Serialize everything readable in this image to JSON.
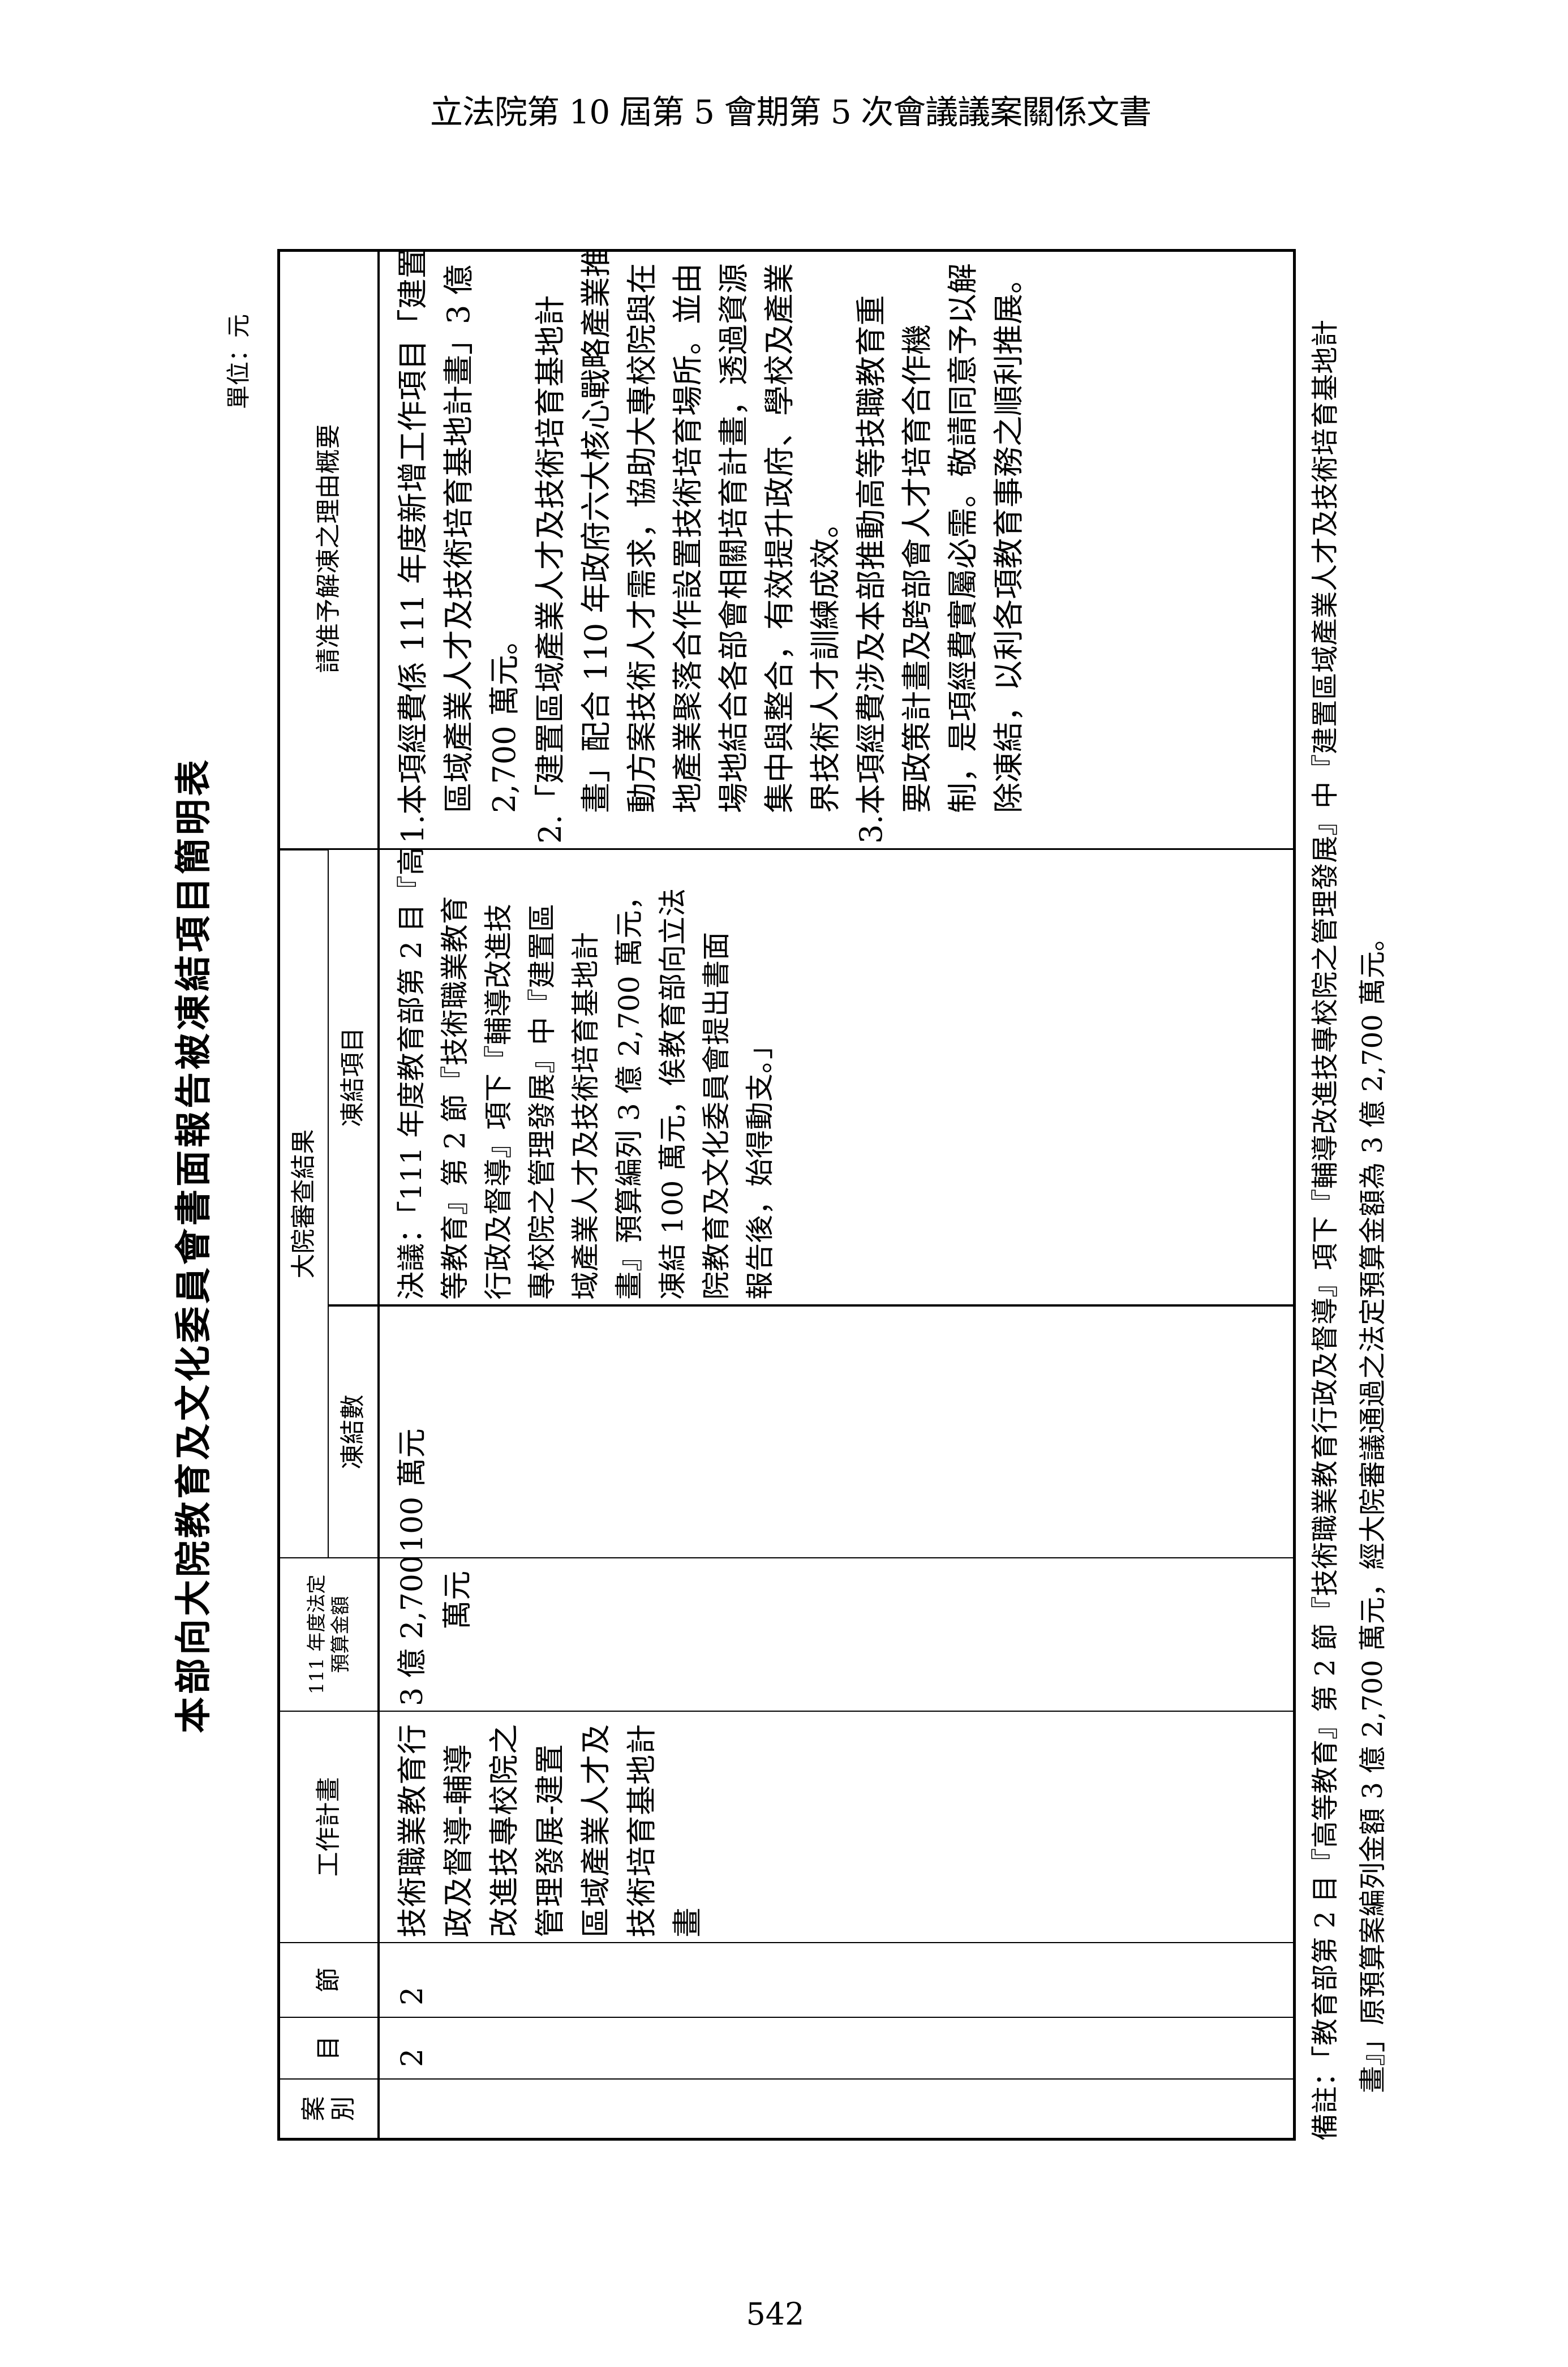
{
  "doc_header": "立法院第 10 屆第 5 會期第 5 次會議議案關係文書",
  "title": "本部向大院教育及文化委員會書面報告被凍結項目簡明表",
  "unit": "單位：元",
  "table": {
    "headers": {
      "case": "案別",
      "item": "目",
      "section": "節",
      "work_plan": "工作計畫",
      "budget_line1": "111 年度法定",
      "budget_line2": "預算金額",
      "review_group": "大院審查結果",
      "frozen_amount": "凍結數",
      "frozen_item": "凍結項目",
      "reason": "請准予解凍之理由概要"
    },
    "row": {
      "case": "",
      "item": "2",
      "section": "2",
      "work_plan": [
        "技術職業教育行",
        "政及督導-輔導",
        "改進技專校院之",
        "管理發展-建置",
        "區域產業人才及",
        "技術培育基地計",
        "畫"
      ],
      "budget": [
        "3 億 2,700",
        "萬元"
      ],
      "frozen_amount": "100 萬元",
      "frozen_item": [
        "決議：「111 年度教育部第 2 目『高",
        "等教育』第 2 節『技術職業教育",
        "行政及督導』項下『輔導改進技",
        "專校院之管理發展』中『建置區",
        "域產業人才及技術培育基地計",
        "畫』預算編列 3 億 2,700 萬元，",
        "凍結 100 萬元，俟教育部向立法",
        "院教育及文化委員會提出書面",
        "報告後，始得動支。」"
      ],
      "reason": [
        "1.本項經費係 111 年度新增工作項目「建置",
        "區域產業人才及技術培育基地計畫」3 億",
        "2,700 萬元。",
        "2.「建置區域產業人才及技術培育基地計",
        "畫」配合 110 年政府六大核心戰略產業推",
        "動方案技術人才需求，協助大專校院與在",
        "地產業聚落合作設置技術培育場所。並由",
        "場地結合各部會相關培育計畫，透過資源",
        "集中與整合，有效提升政府、學校及產業",
        "界技術人才訓練成效。",
        "3.本項經費涉及本部推動高等技職教育重",
        "要政策計畫及跨部會人才培育合作機",
        "制，是項經費實屬必需。敬請同意予以解",
        "除凍結，以利各項教育事務之順利推展。"
      ]
    }
  },
  "footnote": [
    "備註：「教育部第 2 目『高等教育』第 2 節『技術職業教育行政及督導』項下『輔導改進技專校院之管理發展』中『建置區域產業人才及技術培育基地計",
    "畫』」原預算案編列金額 3 億 2,700 萬元，經大院審議通過之法定預算金額為 3 億 2,700 萬元。"
  ],
  "page_number": "542"
}
